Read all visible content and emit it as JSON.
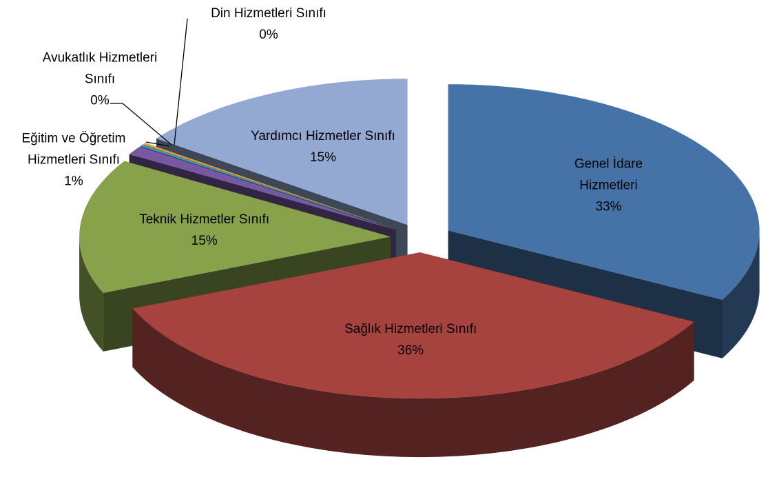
{
  "chart_data": {
    "type": "pie",
    "categories": [
      "Genel İdare Hizmetleri",
      "Sağlık Hizmetleri Sınıfı",
      "Teknik Hizmetler Sınıfı",
      "Eğitim ve Öğretim Hizmetleri Sınıfı",
      "Avukatlık Hizmetleri Sınıfı",
      "Din Hizmetleri Sınıfı",
      "Yardımcı Hizmetler Sınıfı"
    ],
    "values": [
      33,
      36,
      15,
      1,
      0.2,
      0.2,
      15
    ],
    "value_labels": [
      "33%",
      "36%",
      "15%",
      "1%",
      "0%",
      "0%",
      "15%"
    ],
    "colors": [
      "#4572a7",
      "#a7433f",
      "#88a14b",
      "#7659a0",
      "#3f9bb6",
      "#e39a3a",
      "#94a9d2"
    ],
    "exploded": true,
    "three_d": true
  }
}
